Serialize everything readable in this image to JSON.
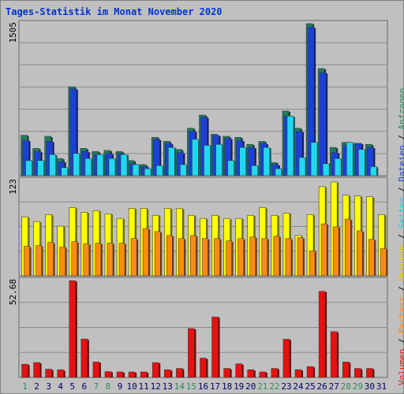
{
  "title": "Tages-Statistik im Monat November 2020",
  "colors": {
    "background": "#c0c0c0",
    "title": "#0033cc",
    "anfragen": "#1e7c5c",
    "dateien": "#1a40d8",
    "seiten": "#22d8f0",
    "besuche": "#ffff00",
    "rechner": "#ff8c10",
    "volumen": "#e81010",
    "day_weekday": "#000066",
    "day_weekend": "#2e8b57"
  },
  "legend": {
    "separator": " / ",
    "items": [
      {
        "label": "Volumen",
        "color": "#e81010"
      },
      {
        "label": "Rechner",
        "color": "#ff8c10"
      },
      {
        "label": "Besuche",
        "color": "#e8c000"
      },
      {
        "label": "Seiten",
        "color": "#22c8e0"
      },
      {
        "label": "Dateien",
        "color": "#1a40d8"
      },
      {
        "label": "Anfragen",
        "color": "#2e8b57"
      }
    ]
  },
  "chart_data": {
    "type": "bar",
    "x": [
      "1",
      "2",
      "3",
      "4",
      "5",
      "6",
      "7",
      "8",
      "9",
      "10",
      "11",
      "12",
      "13",
      "14",
      "15",
      "16",
      "17",
      "18",
      "19",
      "20",
      "21",
      "22",
      "23",
      "24",
      "25",
      "26",
      "27",
      "28",
      "29",
      "30",
      "31"
    ],
    "weekend_days": [
      "1",
      "7",
      "8",
      "14",
      "15",
      "21",
      "22",
      "28",
      "29"
    ],
    "panels": [
      {
        "ymax_label": "1505",
        "ymax": 1505,
        "series": [
          {
            "name": "Anfragen",
            "values": [
              400,
              270,
              390,
              170,
              880,
              270,
              240,
              250,
              240,
              150,
              110,
              380,
              340,
              260,
              470,
              600,
              410,
              390,
              380,
              310,
              340,
              130,
              640,
              470,
              1505,
              1060,
              280,
              330,
              320,
              310,
              0
            ]
          },
          {
            "name": "Dateien",
            "values": [
              350,
              240,
              340,
              140,
              860,
              240,
              210,
              220,
              220,
              120,
              90,
              360,
              320,
              230,
              440,
              580,
              400,
              370,
              350,
              280,
              320,
              110,
              590,
              440,
              1470,
              1020,
              230,
              300,
              320,
              280,
              0
            ]
          },
          {
            "name": "Seiten",
            "values": [
              150,
              150,
              210,
              80,
              220,
              170,
              210,
              170,
              210,
              110,
              70,
              100,
              280,
              110,
              360,
              300,
              310,
              150,
              280,
              100,
              280,
              70,
              590,
              180,
              330,
              120,
              170,
              330,
              260,
              90,
              0
            ]
          }
        ]
      },
      {
        "ymax_label": "123",
        "ymax": 123,
        "series": [
          {
            "name": "Besuche",
            "values": [
              76,
              70,
              79,
              64,
              88,
              82,
              84,
              80,
              74,
              87,
              87,
              78,
              87,
              87,
              78,
              74,
              78,
              74,
              74,
              78,
              88,
              78,
              81,
              52,
              79,
              115,
              121,
              104,
              103,
              102,
              79
            ]
          },
          {
            "name": "Rechner",
            "values": [
              38,
              39,
              43,
              37,
              44,
              41,
              42,
              42,
              42,
              48,
              61,
              57,
              52,
              48,
              52,
              48,
              48,
              45,
              48,
              50,
              48,
              51,
              48,
              49,
              32,
              67,
              63,
              73,
              58,
              47,
              35
            ]
          }
        ]
      },
      {
        "ymax_label": "52.68",
        "ymax": 52.68,
        "series": [
          {
            "name": "Volumen",
            "values": [
              7.2,
              8.1,
              4.5,
              4.2,
              52.6,
              20.9,
              8.4,
              3.2,
              3.0,
              3.0,
              3.0,
              8.1,
              4.2,
              4.9,
              26.6,
              10.5,
              32.9,
              4.9,
              7.4,
              4.2,
              3.0,
              4.9,
              20.8,
              4.2,
              5.9,
              46.8,
              24.9,
              8.4,
              4.9,
              4.9,
              0
            ]
          }
        ]
      }
    ]
  }
}
